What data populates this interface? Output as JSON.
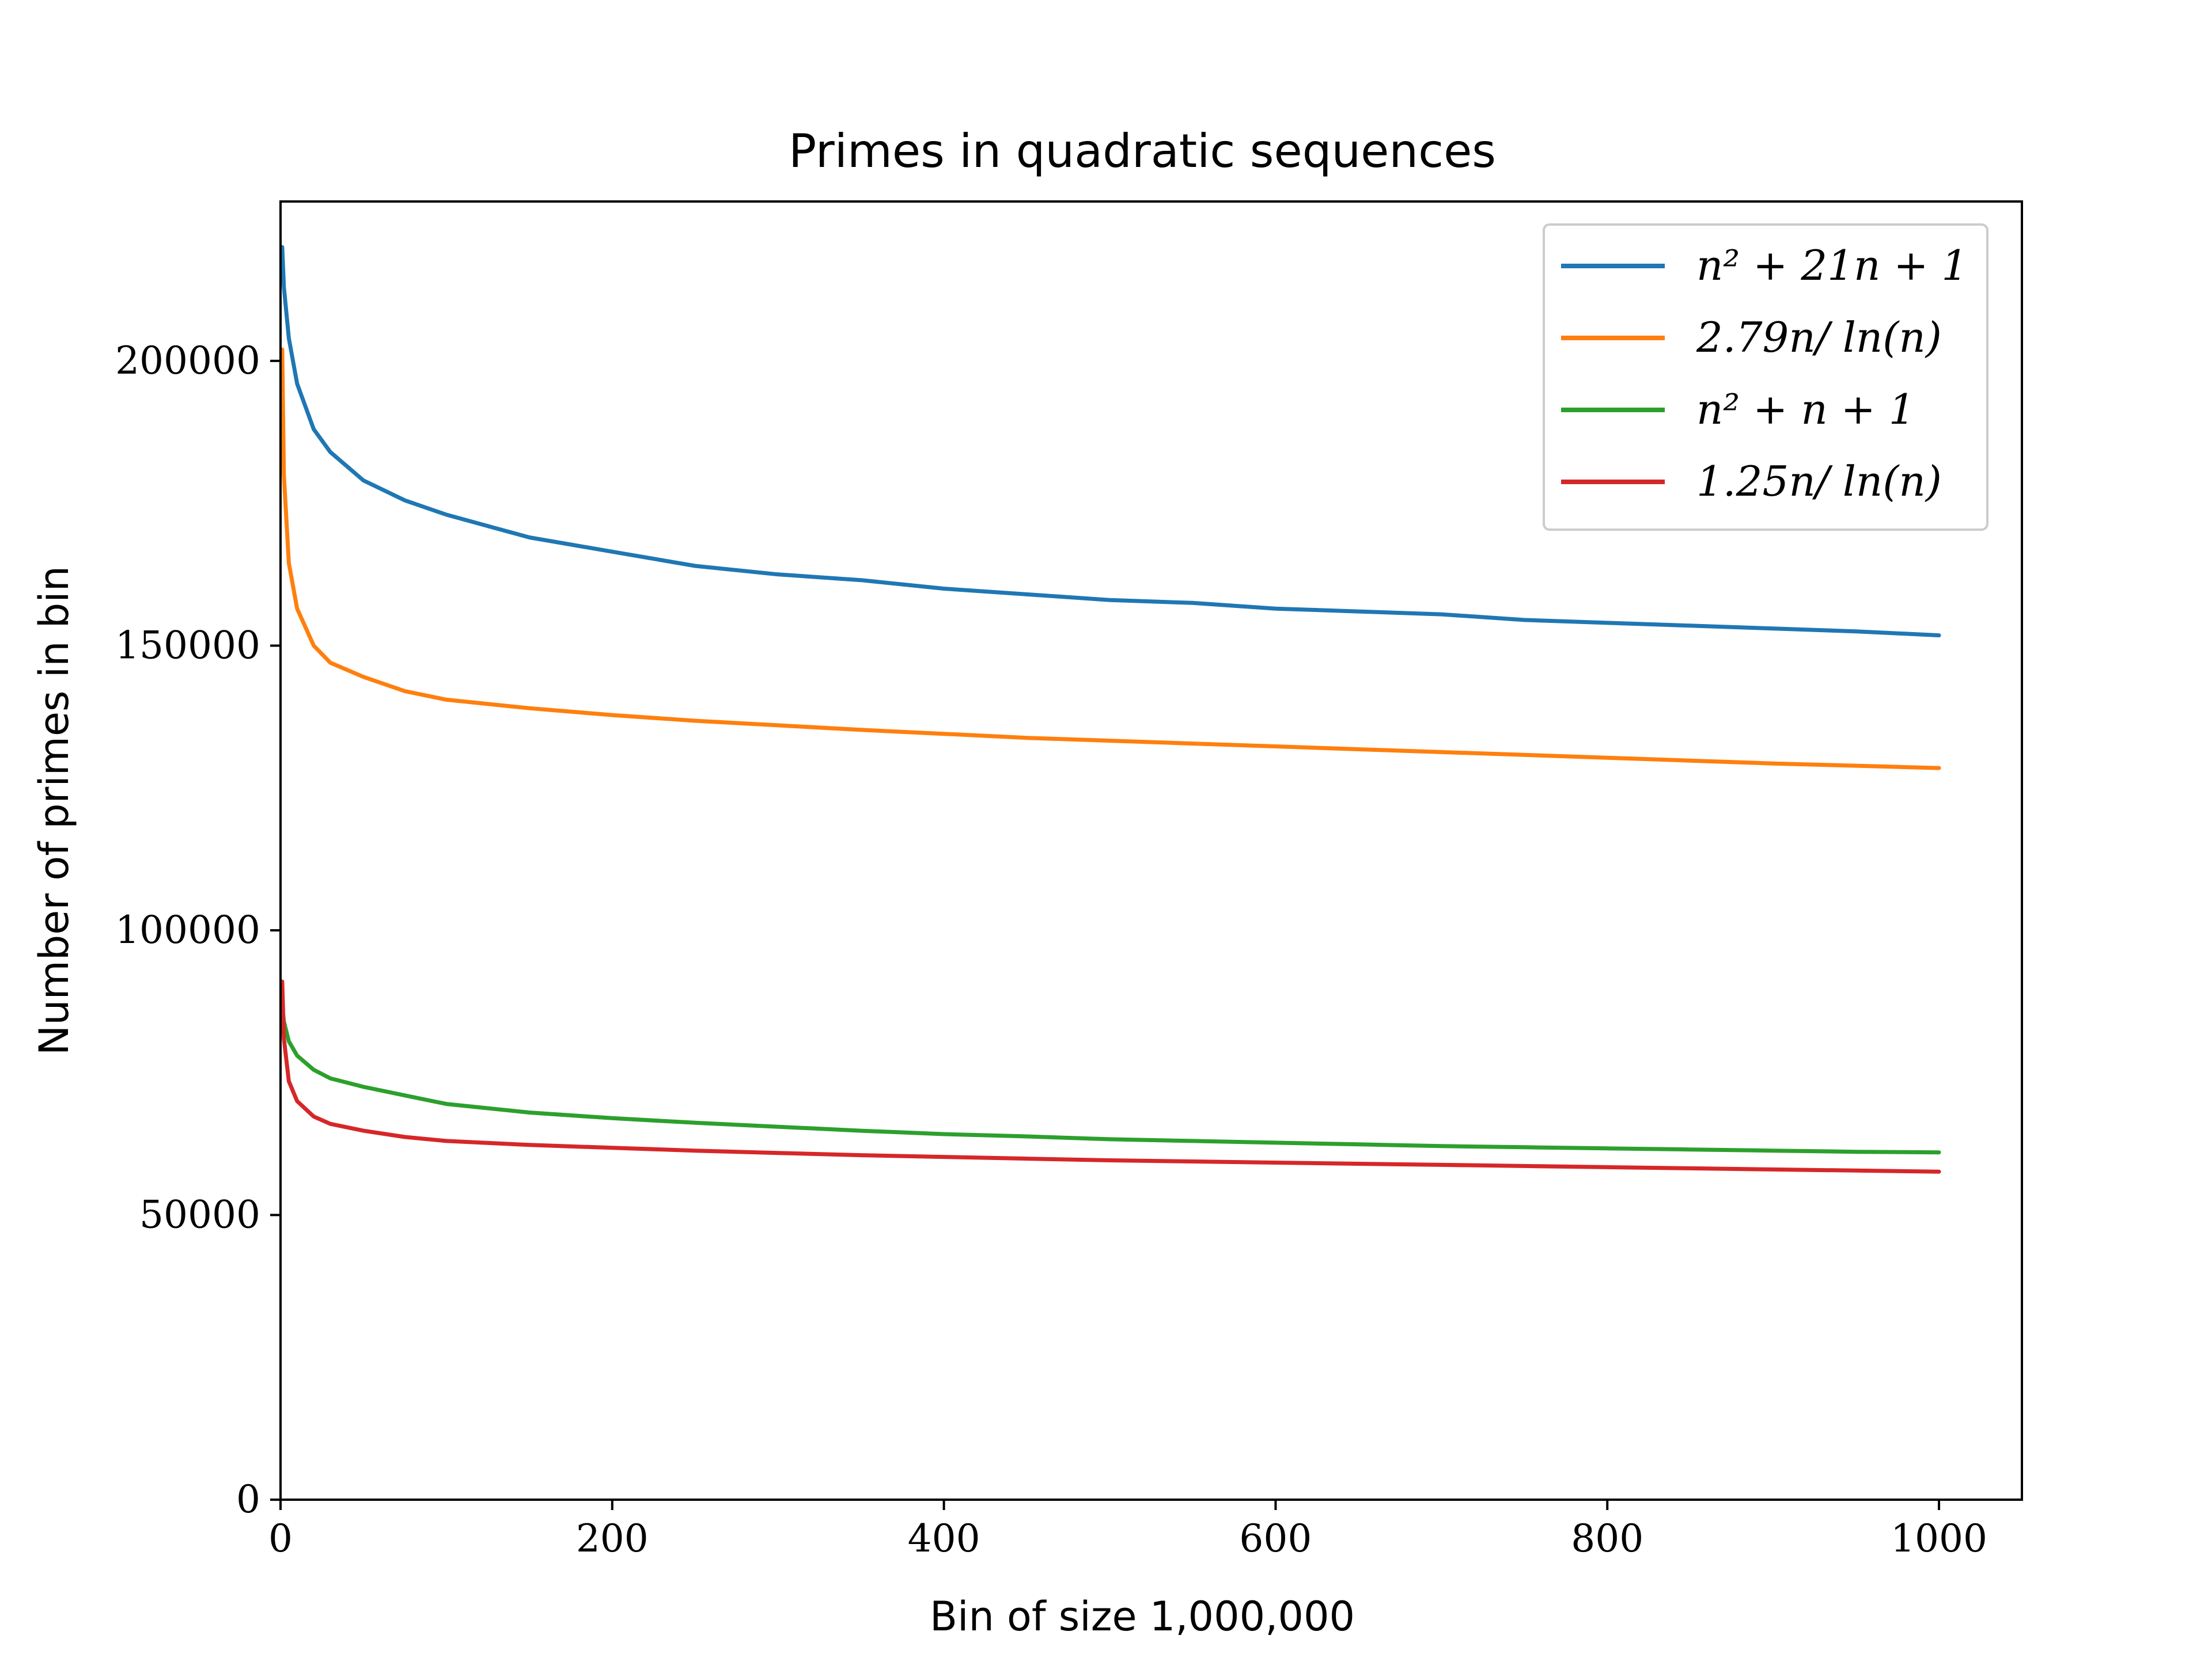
{
  "chart_data": {
    "type": "line",
    "title": "Primes in quadratic sequences",
    "xlabel": "Bin of size 1,000,000",
    "ylabel": "Number of primes in bin",
    "xlim": [
      0,
      1050
    ],
    "ylim": [
      0,
      228000
    ],
    "xticks": [
      0,
      200,
      400,
      600,
      800,
      1000
    ],
    "xtick_labels": [
      "0",
      "200",
      "400",
      "600",
      "800",
      "1000"
    ],
    "yticks": [
      0,
      50000,
      100000,
      150000,
      200000
    ],
    "ytick_labels": [
      "0",
      "50000",
      "100000",
      "150000",
      "200000"
    ],
    "grid": false,
    "legend_position": "top-right",
    "x": [
      1,
      2,
      5,
      10,
      20,
      30,
      50,
      75,
      100,
      150,
      200,
      250,
      300,
      350,
      400,
      450,
      500,
      550,
      600,
      650,
      700,
      750,
      800,
      850,
      900,
      950,
      1000
    ],
    "series": [
      {
        "name": "n^2 + 21n + 1",
        "legend_label": "n² + 21n + 1",
        "color": "#1f77b4",
        "values": [
          220000,
          213000,
          204000,
          196000,
          188000,
          184000,
          179000,
          175500,
          173000,
          169000,
          166500,
          164000,
          162500,
          161500,
          160000,
          159000,
          158000,
          157500,
          156500,
          156000,
          155500,
          154500,
          154000,
          153500,
          153000,
          152500,
          151800
        ]
      },
      {
        "name": "2.79n/ln(n)",
        "legend_label": "2.79n/ ln(n)",
        "color": "#ff7f0e",
        "values": [
          202000,
          180000,
          164500,
          156500,
          150000,
          147000,
          144500,
          142000,
          140500,
          139000,
          137800,
          136800,
          136000,
          135200,
          134500,
          133800,
          133300,
          132800,
          132300,
          131800,
          131300,
          130800,
          130300,
          129800,
          129300,
          128900,
          128500
        ]
      },
      {
        "name": "n^2 + n + 1",
        "legend_label": "n² + n + 1",
        "color": "#2ca02c",
        "values": [
          87000,
          84000,
          80500,
          78000,
          75500,
          74000,
          72500,
          71000,
          69500,
          68000,
          67000,
          66200,
          65500,
          64800,
          64200,
          63800,
          63300,
          63000,
          62700,
          62400,
          62100,
          61900,
          61700,
          61500,
          61300,
          61100,
          61000
        ]
      },
      {
        "name": "1.25n/ln(n)",
        "legend_label": "1.25n/ ln(n)",
        "color": "#d62728",
        "values": [
          91000,
          81000,
          73500,
          70000,
          67300,
          66000,
          64800,
          63700,
          63000,
          62300,
          61800,
          61300,
          60900,
          60500,
          60200,
          59900,
          59600,
          59400,
          59200,
          59000,
          58800,
          58600,
          58400,
          58200,
          58000,
          57800,
          57600
        ]
      }
    ]
  }
}
